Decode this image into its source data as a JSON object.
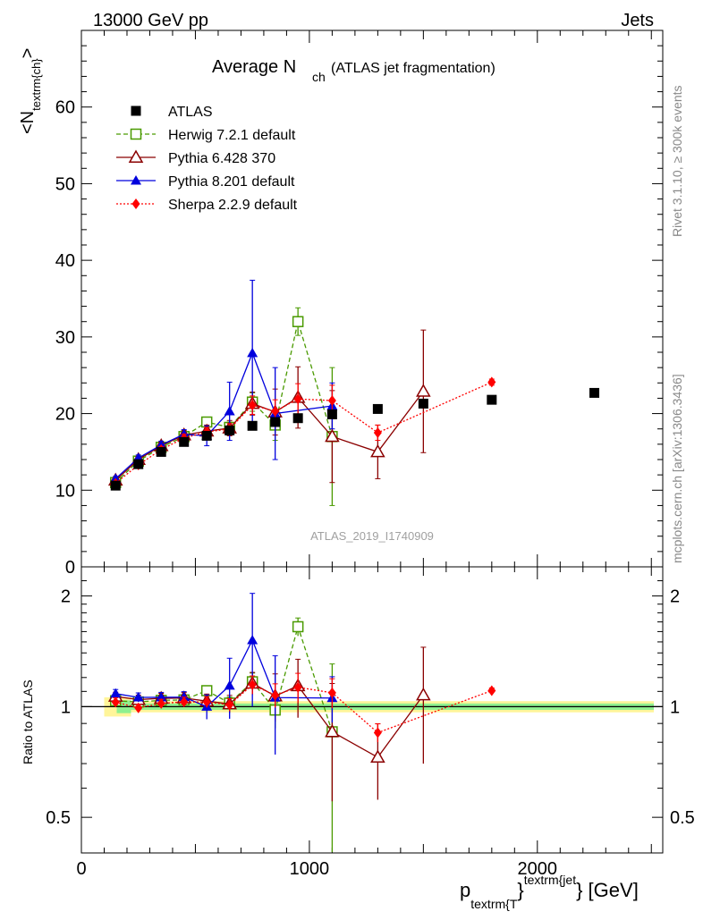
{
  "header": {
    "left": "13000 GeV pp",
    "right": "Jets"
  },
  "side_labels": {
    "rivet": "Rivet 3.1.10, ≥ 300k events",
    "mcplots": "mcplots.cern.ch [arXiv:1306.3436]"
  },
  "chart_data": {
    "type": "scatter",
    "title_main": "Average N",
    "title_sub": "ch",
    "title_note": "(ATLAS jet fragmentation)",
    "watermark": "ATLAS_2019_I1740909",
    "xlabel_main": "p",
    "xlabel_sub": "textrm{T",
    "xlabel_sup": "textrm{jet",
    "xlabel_tail": "} [GeV]",
    "ylabel_main": "<N",
    "ylabel_sub": "textrm{ch}",
    "ylabel_tail": ">",
    "ratio_ylabel": "Ratio to ATLAS",
    "xlim": [
      0,
      2550
    ],
    "ylim": [
      0,
      70
    ],
    "ratio_ylim": [
      0.4,
      2.4
    ],
    "ratio_scale": "log",
    "x_ticks": [
      "0",
      "1000",
      "2000"
    ],
    "y_ticks": [
      "0",
      "10",
      "20",
      "30",
      "40",
      "50",
      "60"
    ],
    "ratio_ticks": [
      "0.5",
      "1",
      "2"
    ],
    "legend_position": "top-left",
    "series": [
      {
        "name": "ATLAS",
        "color": "#000000",
        "marker": "filled-square",
        "line": "none",
        "x": [
          150,
          250,
          350,
          450,
          550,
          650,
          750,
          850,
          950,
          1100,
          1300,
          1500,
          1800,
          2250
        ],
        "y": [
          10.6,
          13.4,
          15.0,
          16.3,
          17.1,
          17.8,
          18.4,
          18.9,
          19.4,
          19.9,
          20.6,
          21.3,
          21.8,
          22.7
        ]
      },
      {
        "name": "Herwig 7.2.1 default",
        "color": "#4a9a00",
        "marker": "open-square",
        "line": "dashed",
        "x": [
          150,
          250,
          350,
          450,
          550,
          650,
          750,
          850,
          950,
          1100
        ],
        "y": [
          11.0,
          13.8,
          15.6,
          17.0,
          18.9,
          18.2,
          21.5,
          18.5,
          32.0,
          17.0
        ],
        "err": [
          0.3,
          0.3,
          0.3,
          0.4,
          0.5,
          0.7,
          1.2,
          2.0,
          1.8,
          9.0
        ]
      },
      {
        "name": "Pythia 6.428 370",
        "color": "#8b0000",
        "marker": "open-triangle",
        "line": "solid",
        "x": [
          150,
          250,
          350,
          450,
          550,
          650,
          750,
          850,
          950,
          1100,
          1300,
          1500
        ],
        "y": [
          11.3,
          14.0,
          15.8,
          17.2,
          17.7,
          18.1,
          21.3,
          20.2,
          22.1,
          17.0,
          15.0,
          22.9
        ],
        "err": [
          0.3,
          0.4,
          0.5,
          0.6,
          0.8,
          1.0,
          1.5,
          3.0,
          4.0,
          6.0,
          3.5,
          8.0
        ]
      },
      {
        "name": "Pythia 8.201 default",
        "color": "#0000dd",
        "marker": "filled-triangle",
        "line": "solid",
        "x": [
          150,
          250,
          350,
          450,
          550,
          650,
          750,
          850,
          1100
        ],
        "y": [
          11.5,
          14.2,
          15.9,
          17.3,
          17.1,
          20.3,
          27.9,
          20.0,
          21.0
        ],
        "err": [
          0.3,
          0.4,
          0.5,
          0.6,
          1.3,
          3.8,
          9.5,
          6.0,
          3.0
        ]
      },
      {
        "name": "Sherpa 2.2.9 default",
        "color": "#ff0000",
        "marker": "filled-diamond",
        "line": "dotted",
        "x": [
          150,
          250,
          350,
          450,
          550,
          650,
          750,
          850,
          950,
          1100,
          1300,
          1800
        ],
        "y": [
          10.9,
          13.3,
          15.3,
          16.8,
          17.6,
          18.0,
          21.1,
          20.3,
          21.9,
          21.7,
          17.5,
          24.1
        ],
        "err": [
          0.3,
          0.3,
          0.4,
          0.5,
          0.6,
          0.7,
          1.2,
          1.5,
          2.0,
          2.0,
          1.0,
          0.4
        ]
      }
    ]
  }
}
